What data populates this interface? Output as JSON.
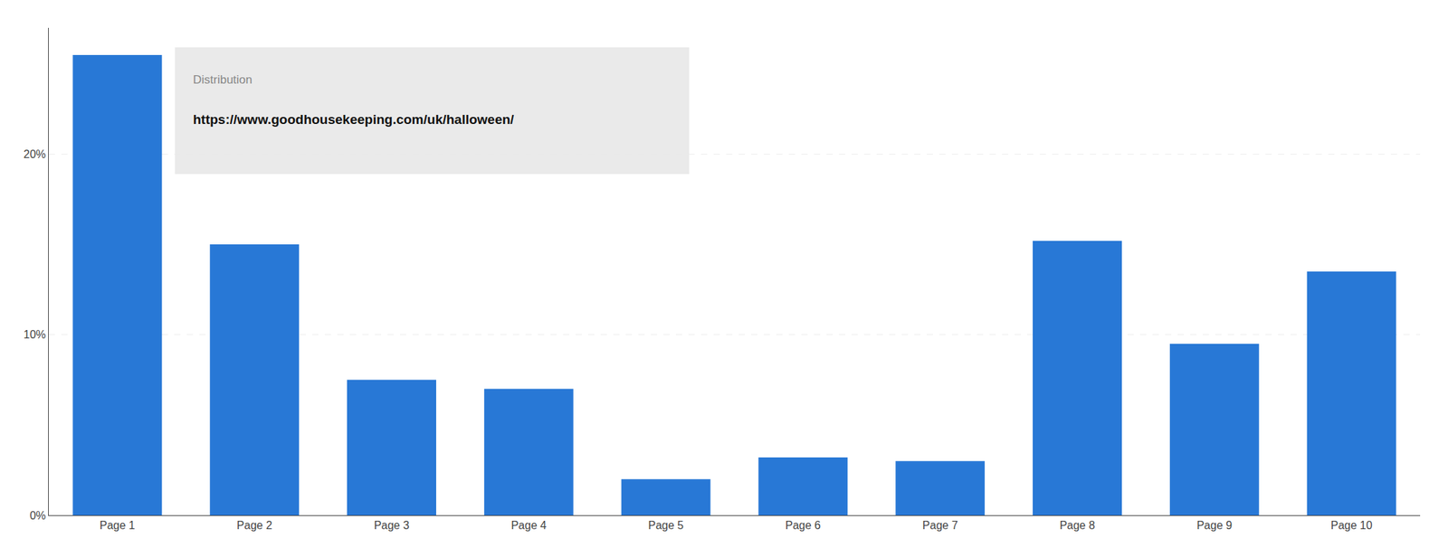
{
  "chart_data": {
    "type": "bar",
    "categories": [
      "Page 1",
      "Page 2",
      "Page 3",
      "Page 4",
      "Page 5",
      "Page 6",
      "Page 7",
      "Page 8",
      "Page 9",
      "Page 10"
    ],
    "values": [
      25.5,
      15.0,
      7.5,
      7.0,
      2.0,
      3.2,
      3.0,
      15.2,
      9.5,
      13.5
    ],
    "color": "#2878d6",
    "ylim": [
      0,
      27
    ],
    "yticks": [
      {
        "value": 0,
        "label": "0%"
      },
      {
        "value": 10,
        "label": "10%"
      },
      {
        "value": 20,
        "label": "20%"
      }
    ],
    "grid": true,
    "annotations": [
      "Distribution",
      "https://www.goodhousekeeping.com/uk/halloween/"
    ]
  }
}
